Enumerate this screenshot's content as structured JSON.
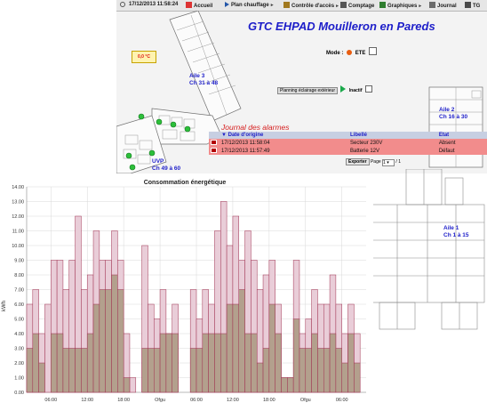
{
  "nav": {
    "datetime": "17/12/2013 11:58:24",
    "items": [
      {
        "label": "Accueil",
        "icon": "home-icon"
      },
      {
        "label": "Plan chauffage",
        "icon": "play-icon"
      },
      {
        "label": "Contrôle d'accès",
        "icon": "key-icon"
      },
      {
        "label": "Comptage",
        "icon": "meter-icon"
      },
      {
        "label": "Graphiques",
        "icon": "chart-icon"
      },
      {
        "label": "Journal",
        "icon": "journal-icon"
      },
      {
        "label": "TG",
        "icon": "power-icon"
      }
    ]
  },
  "header": {
    "title": "GTC EHPAD Mouilleron en Pareds"
  },
  "temperature": "0,0 °C",
  "mode": {
    "label": "Mode :",
    "value": "ETE"
  },
  "planning": {
    "label": "Planning éclairage extérieur",
    "state": "Inactif"
  },
  "zones": {
    "aile3": [
      "Aile 3",
      "Ch 31 à 48"
    ],
    "aile2": [
      "Aile 2",
      "Ch 16 à 30"
    ],
    "uvp": [
      "UVP",
      "Ch 49 à 60"
    ],
    "aile1": [
      "Aile 1",
      "Ch 1 à 15"
    ]
  },
  "alarms": {
    "title": "Journal des alarmes",
    "columns": [
      "Date d'origine",
      "Libellé",
      "Etat"
    ],
    "rows": [
      {
        "date": "17/12/2013 11:58:04",
        "label": "Secteur 230V",
        "state": "Absent"
      },
      {
        "date": "17/12/2013 11:57:49",
        "label": "Batterie 12V",
        "state": "Défaut"
      }
    ],
    "export_label": "Exporter",
    "page_label": "Page",
    "page_current": "1",
    "page_total": "/ 1"
  },
  "colors": {
    "title_blue": "#1d1ec9",
    "alarm_row": "#f28c8c",
    "bar_pink_fill": "#e9cdd8",
    "bar_brown_fill": "#b3a08d",
    "bar_stroke": "#a03050"
  },
  "chart_data": {
    "type": "bar",
    "title": "Consommation énergétique",
    "ylabel": "kWh",
    "ylim": [
      0,
      14
    ],
    "yticks": [
      "0.00",
      "1.00",
      "2.00",
      "3.00",
      "4.00",
      "5.00",
      "6.00",
      "7.00",
      "8.00",
      "9.00",
      "10.00",
      "11.00",
      "12.00",
      "13.00",
      "14.00"
    ],
    "xticks": [
      {
        "hour": 6,
        "label": "06:00"
      },
      {
        "hour": 12,
        "label": "12:00"
      },
      {
        "hour": 18,
        "label": "18:00"
      },
      {
        "hour": 24,
        "label": "Ofgu"
      },
      {
        "hour": 30,
        "label": "06:00"
      },
      {
        "hour": 36,
        "label": "12:00"
      },
      {
        "hour": 42,
        "label": "18:00"
      },
      {
        "hour": 48,
        "label": "Ofgu"
      },
      {
        "hour": 54,
        "label": "06:00"
      }
    ],
    "hours_start": 2,
    "series": [
      {
        "values": [
          6,
          7,
          4,
          6,
          9,
          9,
          7,
          9,
          12,
          7,
          8,
          11,
          9,
          9,
          11,
          9,
          4,
          1,
          0,
          10,
          6,
          5,
          7,
          4,
          6,
          0,
          0,
          7,
          5,
          7,
          6,
          11,
          13,
          10,
          12,
          9,
          11,
          9,
          7,
          8,
          9,
          6,
          1,
          1,
          9,
          4,
          5,
          7,
          6,
          6,
          8,
          6,
          4,
          6,
          4,
          0
        ]
      },
      {
        "values": [
          3,
          4,
          2,
          0,
          4,
          4,
          3,
          3,
          3,
          3,
          4,
          6,
          7,
          7,
          8,
          7,
          1,
          0,
          0,
          3,
          3,
          3,
          4,
          4,
          4,
          0,
          0,
          3,
          3,
          4,
          4,
          4,
          4,
          6,
          6,
          7,
          4,
          4,
          2,
          3,
          6,
          4,
          1,
          1,
          5,
          3,
          3,
          4,
          3,
          3,
          4,
          3,
          2,
          4,
          2,
          0
        ]
      }
    ]
  }
}
